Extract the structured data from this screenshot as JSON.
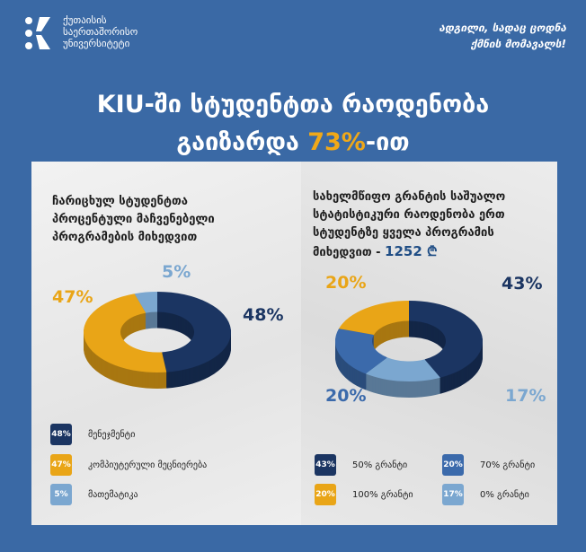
{
  "header": {
    "logo_lines": [
      "ქუთაისის",
      "საერთაშორისო",
      "უნივერსიტეტი"
    ],
    "slogan_lines": [
      "ადგილი, სადაც ცოდნა",
      "ქმნის მომავალს!"
    ]
  },
  "title": {
    "line1": "KIU-ში სტუდენტთა რაოდენობა",
    "line2_pre": "გაიზარდა ",
    "line2_hl": "73%",
    "line2_post": "-ით"
  },
  "colors": {
    "background": "#3a69a5",
    "navy": "#1b3562",
    "yellow": "#e9a517",
    "light_blue": "#7ba7d0",
    "mid_blue": "#3b6aab"
  },
  "chart_data": [
    {
      "type": "pie",
      "donut": true,
      "title": "ჩარიცხულ სტუდენტთა პროცენტული მაჩვენებელი პროგრამების მიხედვით",
      "title_lines": [
        "ჩარიცხულ სტუდენტთა",
        "პროცენტული მაჩვენებელი",
        "პროგრამების მიხედვით"
      ],
      "slices": [
        {
          "label": "მენეჯმენტი",
          "value": 48,
          "text": "48%",
          "color": "#1b3562"
        },
        {
          "label": "კომპიუტერული მეცნიერება",
          "value": 47,
          "text": "47%",
          "color": "#e9a517"
        },
        {
          "label": "მათემატიკა",
          "value": 5,
          "text": "5%",
          "color": "#7ba7d0"
        }
      ]
    },
    {
      "type": "pie",
      "donut": true,
      "title_lines": [
        "სახელმწიფო გრანტის საშუალო",
        "სტატისტიკური რაოდენობა ერთ",
        "სტუდენტზე  ყველა პროგრამის",
        "მიხედვით - "
      ],
      "title_value": "1252 ₾",
      "slices": [
        {
          "label": "50% გრანტი",
          "value": 43,
          "text": "43%",
          "color": "#1b3562"
        },
        {
          "label": "0% გრანტი",
          "value": 17,
          "text": "17%",
          "color": "#7ba7d0"
        },
        {
          "label": "70% გრანტი",
          "value": 20,
          "text": "20%",
          "color": "#3b6aab"
        },
        {
          "label": "100% გრანტი",
          "value": 20,
          "text": "20%",
          "color": "#e9a517"
        }
      ]
    }
  ]
}
